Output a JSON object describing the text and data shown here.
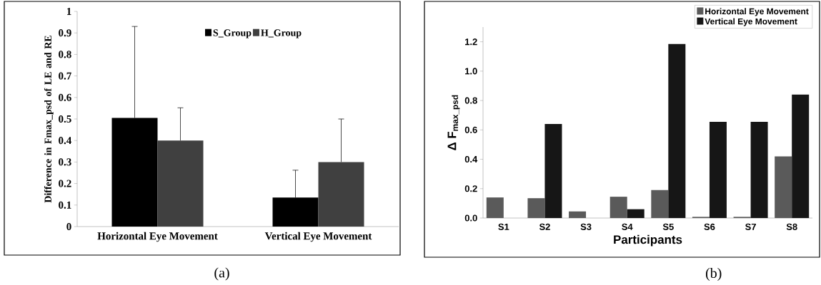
{
  "chart_data": [
    {
      "type": "bar",
      "categories": [
        "Horizontal Eye Movement",
        "Vertical Eye Movement"
      ],
      "ylabel": "Difference in Fmax_psd of LE and RE",
      "ylim": [
        0,
        1
      ],
      "yticks": [
        0,
        0.1,
        0.2,
        0.3,
        0.4,
        0.5,
        0.6,
        0.7,
        0.8,
        0.9,
        1
      ],
      "legend": "top",
      "annotations": [
        "(a)"
      ],
      "series": [
        {
          "name": "S_Group",
          "color": "#000000",
          "values": [
            0.505,
            0.135
          ],
          "errors": [
            [
              0.505,
              0.93
            ],
            [
              0.135,
              0.262
            ]
          ]
        },
        {
          "name": "H_Group",
          "color": "#404040",
          "values": [
            0.4,
            0.3
          ],
          "errors": [
            [
              0.4,
              0.552
            ],
            [
              0.3,
              0.5
            ]
          ]
        }
      ]
    },
    {
      "type": "bar",
      "categories": [
        "S1",
        "S2",
        "S3",
        "S4",
        "S5",
        "S6",
        "S7",
        "S8"
      ],
      "xlabel": "Participants",
      "ylabel": "Δ F$_{max_psd}$",
      "ylim": [
        0,
        1.3
      ],
      "yticks": [
        {
          "value": 0,
          "label": "0.0"
        },
        {
          "value": 0.2,
          "label": "0.2"
        },
        {
          "value": 0.4,
          "label": "0.4"
        },
        {
          "value": 0.6,
          "label": "0.6"
        },
        {
          "value": 0.8,
          "label": "0.8"
        },
        {
          "value": 1.0,
          "label": "1.0"
        },
        {
          "value": 1.2,
          "label": "1.2"
        }
      ],
      "legend": "top right",
      "annotations": [
        "(b)"
      ],
      "series": [
        {
          "name": "Horizontal Eye Movement",
          "color": "#5a5a5a",
          "values": [
            0.14,
            0.135,
            0.045,
            0.145,
            0.19,
            0.008,
            0.008,
            0.42
          ]
        },
        {
          "name": "Vertical Eye Movement",
          "color": "#161616",
          "values": [
            null,
            0.64,
            null,
            0.06,
            1.185,
            0.655,
            0.655,
            0.84
          ]
        }
      ]
    }
  ]
}
